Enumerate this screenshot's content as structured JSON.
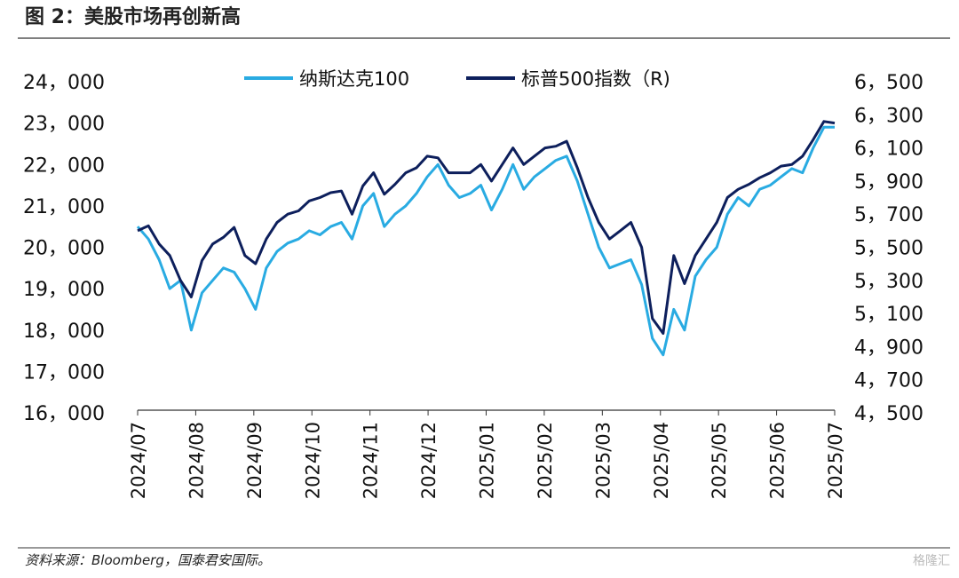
{
  "title": "图 2：美股市场再创新高",
  "source": "资料来源：Bloomberg，国泰君安国际。",
  "watermark": "格隆汇",
  "chart_data": {
    "type": "line",
    "xticks": [
      "2024/07",
      "2024/08",
      "2024/09",
      "2024/10",
      "2024/11",
      "2024/12",
      "2025/01",
      "2025/02",
      "2025/03",
      "2025/04",
      "2025/05",
      "2025/06",
      "2025/07"
    ],
    "ylim": [
      16000,
      24000
    ],
    "yticks": [
      {
        "value": 16000,
        "label": "16，000"
      },
      {
        "value": 17000,
        "label": "17，000"
      },
      {
        "value": 18000,
        "label": "18，000"
      },
      {
        "value": 19000,
        "label": "19，000"
      },
      {
        "value": 20000,
        "label": "20，000"
      },
      {
        "value": 21000,
        "label": "21，000"
      },
      {
        "value": 22000,
        "label": "22，000"
      },
      {
        "value": 23000,
        "label": "23，000"
      },
      {
        "value": 24000,
        "label": "24，000"
      }
    ],
    "y2lim": [
      4500,
      6500
    ],
    "y2ticks": [
      {
        "value": 4500,
        "label": "4，500"
      },
      {
        "value": 4700,
        "label": "4，700"
      },
      {
        "value": 4900,
        "label": "4，900"
      },
      {
        "value": 5100,
        "label": "5，100"
      },
      {
        "value": 5300,
        "label": "5，300"
      },
      {
        "value": 5500,
        "label": "5，500"
      },
      {
        "value": 5700,
        "label": "5，700"
      },
      {
        "value": 5900,
        "label": "5，900"
      },
      {
        "value": 6100,
        "label": "6，100"
      },
      {
        "value": 6300,
        "label": "6，300"
      },
      {
        "value": 6500,
        "label": "6，500"
      }
    ],
    "series": [
      {
        "name": "纳斯达克100",
        "color": "#29abe2",
        "axis": "y",
        "values": [
          20500,
          20200,
          19700,
          19000,
          19200,
          18000,
          18900,
          19200,
          19500,
          19400,
          19000,
          18500,
          19500,
          19900,
          20100,
          20200,
          20400,
          20300,
          20500,
          20600,
          20200,
          21000,
          21300,
          20500,
          20800,
          21000,
          21300,
          21700,
          22000,
          21500,
          21200,
          21300,
          21500,
          20900,
          21400,
          22000,
          21400,
          21700,
          21900,
          22100,
          22200,
          21600,
          20800,
          20000,
          19500,
          19600,
          19700,
          19100,
          17800,
          17400,
          18500,
          18000,
          19300,
          19700,
          20000,
          20800,
          21200,
          21000,
          21400,
          21500,
          21700,
          21900,
          21800,
          22400,
          22900,
          22900
        ]
      },
      {
        "name": "标普500指数（R)",
        "color": "#0d1f5c",
        "axis": "y2",
        "values": [
          5600,
          5630,
          5520,
          5450,
          5300,
          5200,
          5420,
          5520,
          5560,
          5620,
          5450,
          5400,
          5550,
          5650,
          5700,
          5720,
          5780,
          5800,
          5830,
          5840,
          5700,
          5870,
          5950,
          5820,
          5880,
          5950,
          5980,
          6050,
          6040,
          5950,
          5950,
          5950,
          6000,
          5900,
          6000,
          6100,
          6000,
          6050,
          6100,
          6110,
          6140,
          5980,
          5800,
          5650,
          5550,
          5600,
          5650,
          5500,
          5070,
          4980,
          5450,
          5280,
          5450,
          5550,
          5650,
          5800,
          5850,
          5880,
          5920,
          5950,
          5990,
          6000,
          6050,
          6150,
          6260,
          6250
        ]
      }
    ]
  }
}
